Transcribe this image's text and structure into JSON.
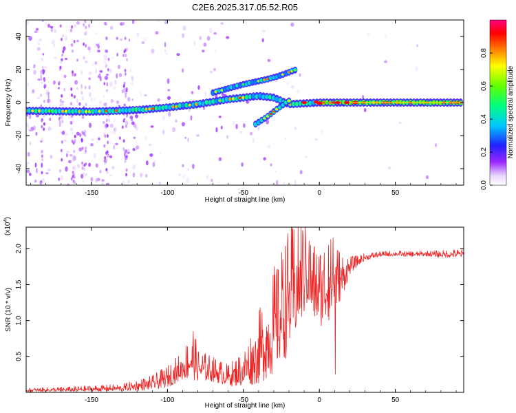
{
  "figure_title": "C2E6.2025.317.05.52.R05",
  "colors": {
    "snr_line": "#ee2222",
    "axis": "#000000",
    "background": "#ffffff"
  },
  "chart_data": [
    {
      "type": "heatmap",
      "title": "C2E6.2025.317.05.52.R05",
      "xlabel": "Height of straight line (km)",
      "ylabel": "Frequency (Hz)",
      "xlim": [
        -193,
        95
      ],
      "ylim": [
        -50,
        50
      ],
      "x_ticks": [
        -150,
        -100,
        -50,
        0,
        50
      ],
      "y_ticks": [
        -40,
        -20,
        0,
        20,
        40
      ],
      "x_tick_labels": [
        "-150",
        "-100",
        "-50",
        "0",
        "50"
      ],
      "y_tick_labels": [
        "-40",
        "-20",
        "0",
        "20",
        "40"
      ],
      "colorbar": {
        "label": "Normalized spectral amplitude",
        "range": [
          0,
          1
        ],
        "ticks": [
          0.0,
          0.2,
          0.4,
          0.6,
          0.8
        ],
        "tick_labels": [
          "0.0",
          "0.2",
          "0.4",
          "0.6",
          "0.8"
        ],
        "colormap": "rainbow (white-violet-blue-cyan-green-yellow-red-magenta)"
      },
      "features": [
        {
          "name": "main_doppler_trace",
          "points": [
            [
              -193,
              -5
            ],
            [
              -150,
              -5.5
            ],
            [
              -120,
              -4.5
            ],
            [
              -100,
              -3
            ],
            [
              -80,
              -1
            ],
            [
              -60,
              2
            ],
            [
              -40,
              4
            ],
            [
              -30,
              3
            ],
            [
              -20,
              -1
            ],
            [
              0,
              0
            ],
            [
              20,
              0
            ],
            [
              95,
              0
            ]
          ],
          "amplitude": 0.5
        },
        {
          "name": "upper_branch",
          "points": [
            [
              -70,
              6
            ],
            [
              -50,
              11
            ],
            [
              -35,
              14
            ],
            [
              -27,
              16
            ],
            [
              -15,
              20
            ]
          ],
          "amplitude": 0.35
        },
        {
          "name": "lower_branch",
          "points": [
            [
              -42,
              -13
            ],
            [
              -35,
              -9
            ],
            [
              -28,
              -4
            ],
            [
              -20,
              1
            ]
          ],
          "amplitude": 0.4
        }
      ]
    },
    {
      "type": "line",
      "title": "",
      "xlabel": "Height of straight line (km)",
      "ylabel": "SNR (10 * v/v)",
      "y_multiplier_label": "(x10",
      "y_multiplier_exp": "4",
      "y_multiplier_close": ")",
      "xlim": [
        -193,
        95
      ],
      "ylim": [
        0,
        2.3
      ],
      "x_ticks": [
        -150,
        -100,
        -50,
        0,
        50
      ],
      "y_ticks": [
        0.5,
        1.0,
        1.5,
        2.0
      ],
      "x_tick_labels": [
        "-150",
        "-100",
        "-50",
        "0",
        "50"
      ],
      "y_tick_labels": [
        "0.5",
        "1.0",
        "1.5",
        "2.0"
      ],
      "series": [
        {
          "name": "SNR",
          "envelope_x": [
            -193,
            -160,
            -130,
            -110,
            -100,
            -90,
            -83,
            -80,
            -70,
            -60,
            -50,
            -40,
            -30,
            -20,
            -12,
            -8,
            -5,
            0,
            5,
            10,
            15,
            20,
            25,
            30,
            40,
            50,
            60,
            70,
            80,
            95
          ],
          "envelope_y": [
            0.03,
            0.04,
            0.06,
            0.12,
            0.2,
            0.35,
            0.5,
            0.35,
            0.3,
            0.22,
            0.3,
            0.55,
            0.9,
            1.3,
            1.6,
            1.7,
            1.5,
            1.4,
            1.5,
            1.55,
            1.6,
            1.75,
            1.82,
            1.88,
            1.92,
            1.93,
            1.92,
            1.93,
            1.92,
            1.93
          ],
          "noise_amp": [
            0.02,
            0.03,
            0.04,
            0.08,
            0.12,
            0.16,
            0.3,
            0.18,
            0.14,
            0.12,
            0.2,
            0.4,
            0.6,
            0.7,
            0.6,
            0.5,
            0.45,
            0.45,
            0.5,
            0.4,
            0.25,
            0.1,
            0.06,
            0.04,
            0.03,
            0.03,
            0.03,
            0.03,
            0.04,
            0.05
          ],
          "peaks": [
            [
              -83,
              0.85
            ],
            [
              -12,
              2.32
            ],
            [
              -9,
              2.1
            ],
            [
              -7,
              1.85
            ],
            [
              9,
              2.15
            ],
            [
              11,
              1.75
            ],
            [
              6,
              2.05
            ],
            [
              10.5,
              0.25
            ],
            [
              -27,
              1.7
            ],
            [
              -24,
              1.85
            ]
          ]
        }
      ]
    }
  ]
}
